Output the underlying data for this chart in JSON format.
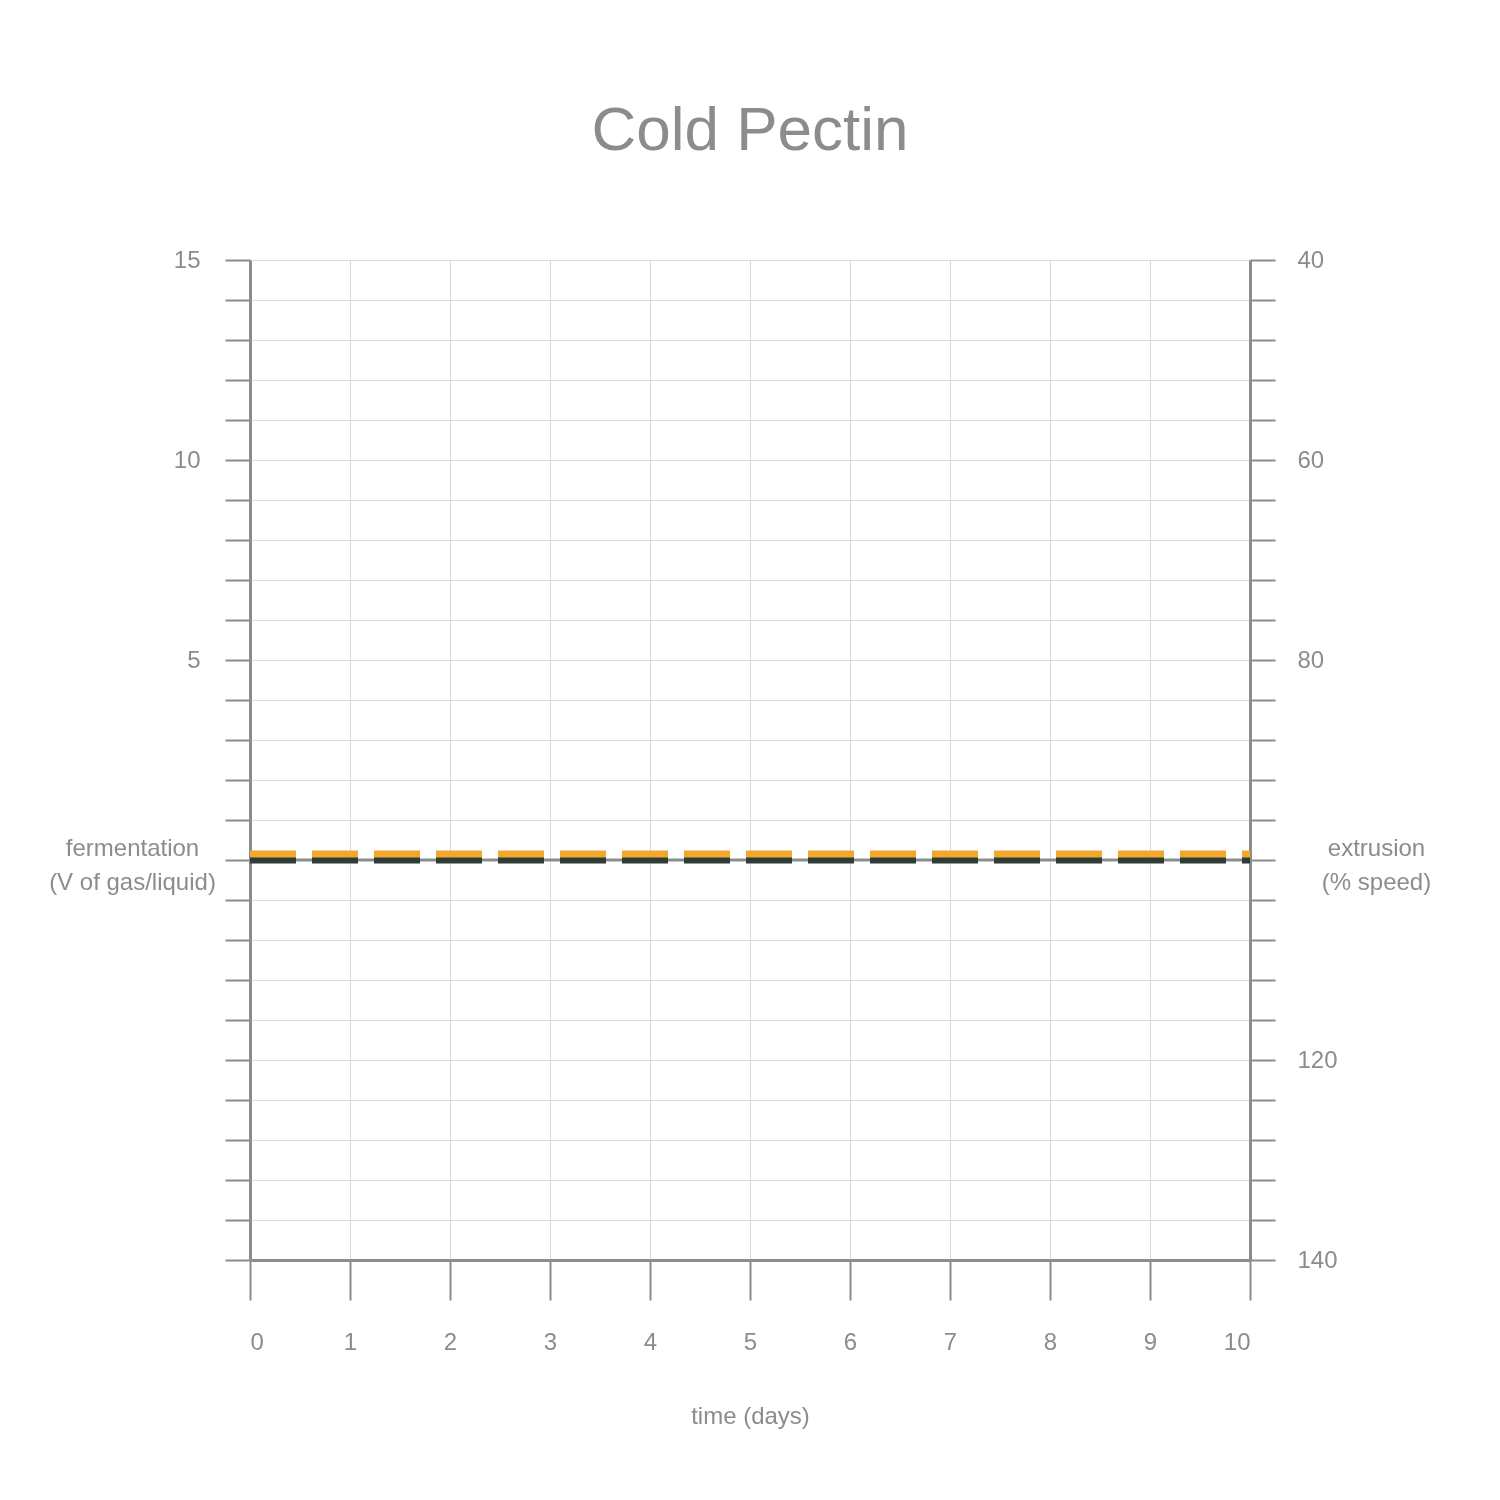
{
  "chart_data": {
    "type": "line",
    "title": "Cold Pectin",
    "xlabel": "time (days)",
    "ylabel": "fermentation\n(V of gas/liquid)",
    "y2label": "extrusion\n(% speed)",
    "x": [
      0,
      10
    ],
    "series": [
      {
        "color": "#f0a830",
        "values": [
          99.4,
          99.4
        ],
        "axis": "y2",
        "line_style": "dashed"
      },
      {
        "color": "#2f3b35",
        "values": [
          0,
          0
        ],
        "line_style": "dashed"
      }
    ],
    "xlim": [
      0,
      10
    ],
    "xticks": [
      0,
      1,
      2,
      3,
      4,
      5,
      6,
      7,
      8,
      9,
      10
    ],
    "ylim": [
      -10,
      15
    ],
    "yticks": [
      {
        "value": -10,
        "label": null
      },
      {
        "value": -9,
        "label": null
      },
      {
        "value": -8,
        "label": null
      },
      {
        "value": -7,
        "label": null
      },
      {
        "value": -6,
        "label": null
      },
      {
        "value": -5,
        "label": null
      },
      {
        "value": -4,
        "label": null
      },
      {
        "value": -3,
        "label": null
      },
      {
        "value": -2,
        "label": null
      },
      {
        "value": -1,
        "label": null
      },
      {
        "value": 0,
        "label": null
      },
      {
        "value": 1,
        "label": null
      },
      {
        "value": 2,
        "label": null
      },
      {
        "value": 3,
        "label": null
      },
      {
        "value": 4,
        "label": null
      },
      5,
      {
        "value": 6,
        "label": null
      },
      {
        "value": 7,
        "label": null
      },
      {
        "value": 8,
        "label": null
      },
      {
        "value": 9,
        "label": null
      },
      10,
      {
        "value": 11,
        "label": null
      },
      {
        "value": 12,
        "label": null
      },
      {
        "value": 13,
        "label": null
      },
      {
        "value": 14,
        "label": null
      },
      15
    ],
    "y2lim": [
      140,
      40
    ],
    "y2ticks": [
      40,
      {
        "value": 44,
        "label": null
      },
      {
        "value": 48,
        "label": null
      },
      {
        "value": 52,
        "label": null
      },
      {
        "value": 56,
        "label": null
      },
      60,
      {
        "value": 64,
        "label": null
      },
      {
        "value": 68,
        "label": null
      },
      {
        "value": 72,
        "label": null
      },
      {
        "value": 76,
        "label": null
      },
      80,
      {
        "value": 84,
        "label": null
      },
      {
        "value": 88,
        "label": null
      },
      {
        "value": 92,
        "label": null
      },
      {
        "value": 96,
        "label": null
      },
      {
        "value": 100,
        "label": null
      },
      {
        "value": 104,
        "label": null
      },
      {
        "value": 108,
        "label": null
      },
      {
        "value": 112,
        "label": null
      },
      {
        "value": 116,
        "label": null
      },
      120,
      {
        "value": 124,
        "label": null
      },
      {
        "value": 128,
        "label": null
      },
      {
        "value": 132,
        "label": null
      },
      {
        "value": 136,
        "label": null
      },
      140
    ],
    "ref_lines": [
      {
        "axis": "y",
        "value": 0,
        "color": "#8a8d8f"
      }
    ],
    "grid": true
  }
}
